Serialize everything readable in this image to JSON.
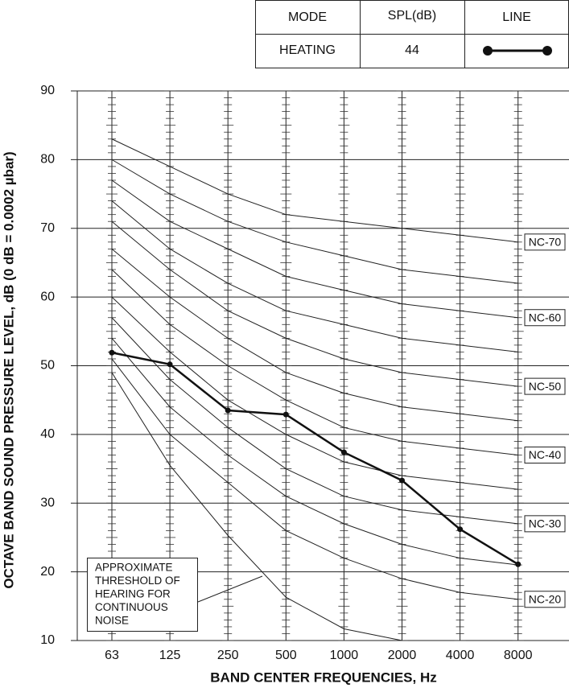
{
  "chart_data": {
    "type": "line",
    "x_label": "BAND CENTER FREQUENCIES, Hz",
    "y_label": "OCTAVE BAND SOUND PRESSURE LEVEL, dB (0 dB = 0.0002 µbar)",
    "categories": [
      "63",
      "125",
      "250",
      "500",
      "1000",
      "2000",
      "4000",
      "8000"
    ],
    "ylim": [
      10,
      90
    ],
    "yticks": [
      10,
      20,
      30,
      40,
      50,
      60,
      70,
      80,
      90
    ],
    "grid": true,
    "legend_headers": [
      "MODE",
      "SPL(dB)",
      "LINE"
    ],
    "series": [
      {
        "name": "HEATING",
        "spl": 44,
        "color": "#111111",
        "values": [
          51.9,
          50.2,
          43.5,
          42.9,
          37.4,
          33.3,
          26.2,
          21.1
        ]
      }
    ],
    "reference_curves": [
      {
        "label": "NC-70",
        "values": [
          83,
          79,
          75,
          72,
          71,
          70,
          69,
          68
        ]
      },
      {
        "values": [
          80,
          75,
          71,
          68,
          66,
          64,
          63,
          62
        ]
      },
      {
        "label": "NC-60",
        "values": [
          77,
          71,
          67,
          63,
          61,
          59,
          58,
          57
        ]
      },
      {
        "values": [
          74,
          67,
          62,
          58,
          56,
          54,
          53,
          52
        ]
      },
      {
        "label": "NC-50",
        "values": [
          71,
          64,
          58,
          54,
          51,
          49,
          48,
          47
        ]
      },
      {
        "values": [
          67,
          60,
          54,
          49,
          46,
          44,
          43,
          42
        ]
      },
      {
        "label": "NC-40",
        "values": [
          64,
          56,
          50,
          45,
          41,
          39,
          38,
          37
        ]
      },
      {
        "values": [
          60,
          52,
          45,
          40,
          36,
          34,
          33,
          32
        ]
      },
      {
        "label": "NC-30",
        "values": [
          57,
          48,
          41,
          35,
          31,
          29,
          28,
          27
        ]
      },
      {
        "values": [
          54,
          44,
          37,
          31,
          27,
          24,
          22,
          21
        ]
      },
      {
        "label": "NC-20",
        "values": [
          51,
          40,
          33,
          26,
          22,
          19,
          17,
          16
        ]
      }
    ],
    "threshold_curve": {
      "values": [
        49,
        35.5,
        25.3,
        16.3,
        11.7,
        10,
        null,
        null
      ]
    },
    "annotation": [
      "APPROXIMATE",
      "THRESHOLD OF",
      "HEARING FOR",
      "CONTINUOUS",
      "NOISE"
    ]
  }
}
